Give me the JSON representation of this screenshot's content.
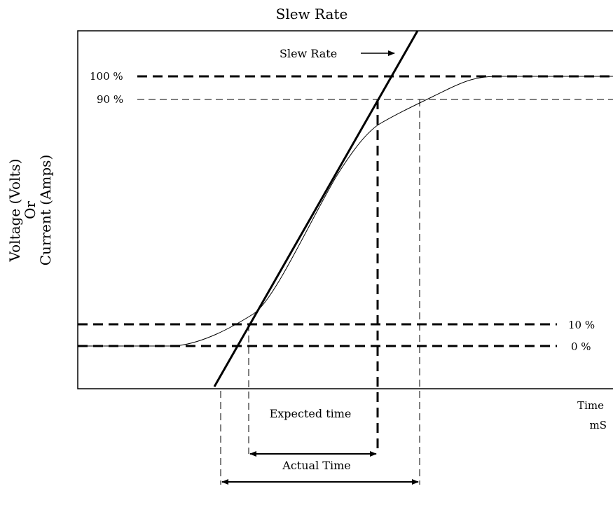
{
  "diagram": {
    "title": "Slew Rate",
    "y_axis_label_line1": "Voltage (Volts)",
    "y_axis_label_line2": "Or",
    "y_axis_label_line3": "Current (Amps)",
    "x_axis_label_line1": "Time",
    "x_axis_label_line2": "mS",
    "slew_rate_arrow_label": "Slew Rate",
    "level_100": "100 %",
    "level_90": "90 %",
    "level_10": "10 %",
    "level_0": "0 %",
    "expected_time_label": "Expected time",
    "actual_time_label": "Actual Time"
  }
}
